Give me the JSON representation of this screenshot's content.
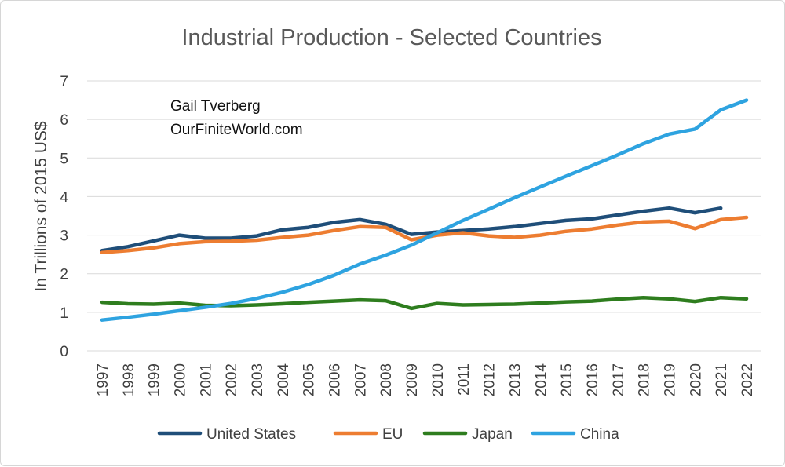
{
  "chart_data": {
    "type": "line",
    "title": "Industrial Production - Selected Countries",
    "ylabel": "In Trillions of 2015 US$",
    "xlabel": "",
    "ylim": [
      0,
      7
    ],
    "yticks": [
      0,
      1,
      2,
      3,
      4,
      5,
      6,
      7
    ],
    "grid": true,
    "legend_position": "bottom",
    "annotation_lines": [
      "Gail Tverberg",
      "OurFiniteWorld.com"
    ],
    "x": [
      "1997",
      "1998",
      "1999",
      "2000",
      "2001",
      "2002",
      "2003",
      "2004",
      "2005",
      "2006",
      "2007",
      "2008",
      "2009",
      "2010",
      "2011",
      "2012",
      "2013",
      "2014",
      "2015",
      "2016",
      "2017",
      "2018",
      "2019",
      "2020",
      "2021",
      "2022"
    ],
    "series": [
      {
        "name": "United States",
        "color": "#1f4e79",
        "values": [
          2.6,
          2.7,
          2.85,
          3.0,
          2.92,
          2.92,
          2.98,
          3.14,
          3.2,
          3.33,
          3.4,
          3.28,
          3.02,
          3.08,
          3.12,
          3.16,
          3.22,
          3.3,
          3.38,
          3.42,
          3.52,
          3.62,
          3.7,
          3.58,
          3.7,
          null
        ]
      },
      {
        "name": "EU",
        "color": "#ed7d31",
        "values": [
          2.55,
          2.6,
          2.67,
          2.78,
          2.83,
          2.84,
          2.87,
          2.94,
          3.0,
          3.12,
          3.22,
          3.2,
          2.88,
          3.0,
          3.06,
          2.98,
          2.94,
          3.0,
          3.1,
          3.16,
          3.26,
          3.34,
          3.36,
          3.17,
          3.4,
          3.46
        ]
      },
      {
        "name": "Japan",
        "color": "#2e7d1e",
        "values": [
          1.26,
          1.22,
          1.21,
          1.24,
          1.18,
          1.17,
          1.19,
          1.22,
          1.26,
          1.29,
          1.32,
          1.3,
          1.1,
          1.23,
          1.19,
          1.2,
          1.21,
          1.24,
          1.27,
          1.29,
          1.34,
          1.38,
          1.35,
          1.28,
          1.38,
          1.35
        ]
      },
      {
        "name": "China",
        "color": "#2ea3e0",
        "values": [
          0.8,
          0.87,
          0.95,
          1.04,
          1.13,
          1.23,
          1.36,
          1.52,
          1.72,
          1.96,
          2.25,
          2.48,
          2.74,
          3.06,
          3.38,
          3.67,
          3.97,
          4.25,
          4.53,
          4.8,
          5.08,
          5.37,
          5.62,
          5.75,
          6.25,
          6.5
        ]
      }
    ]
  }
}
